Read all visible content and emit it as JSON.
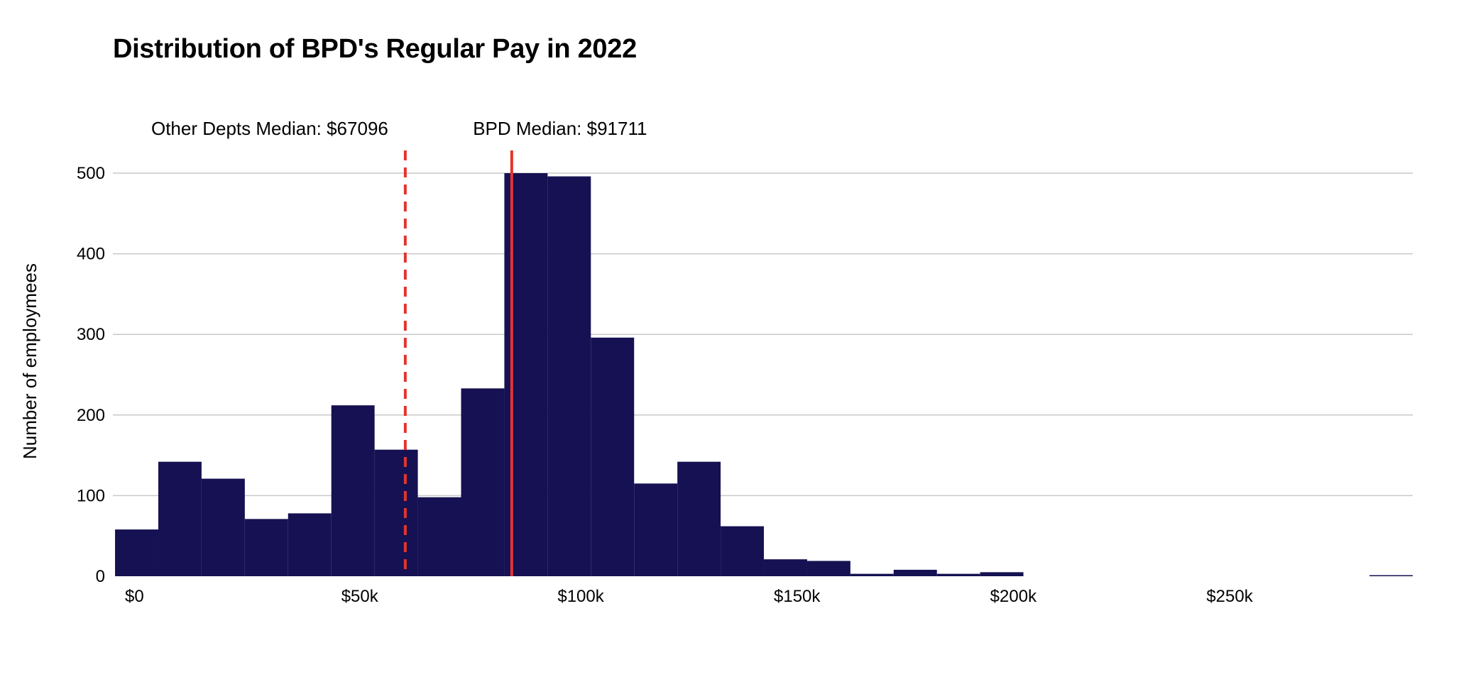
{
  "chart_data": {
    "type": "bar",
    "title": "Distribution of BPD's Regular Pay in 2022",
    "xlabel": "",
    "ylabel": "Number of employmees",
    "bin_width": 10000,
    "bins": [
      {
        "x0": 0,
        "x1": 10000,
        "count": 58
      },
      {
        "x0": 10000,
        "x1": 20000,
        "count": 142
      },
      {
        "x0": 20000,
        "x1": 30000,
        "count": 121
      },
      {
        "x0": 30000,
        "x1": 40000,
        "count": 71
      },
      {
        "x0": 40000,
        "x1": 50000,
        "count": 78
      },
      {
        "x0": 50000,
        "x1": 60000,
        "count": 212
      },
      {
        "x0": 60000,
        "x1": 70000,
        "count": 157
      },
      {
        "x0": 70000,
        "x1": 80000,
        "count": 98
      },
      {
        "x0": 80000,
        "x1": 90000,
        "count": 233
      },
      {
        "x0": 90000,
        "x1": 100000,
        "count": 500
      },
      {
        "x0": 100000,
        "x1": 110000,
        "count": 496
      },
      {
        "x0": 110000,
        "x1": 120000,
        "count": 296
      },
      {
        "x0": 120000,
        "x1": 130000,
        "count": 115
      },
      {
        "x0": 130000,
        "x1": 140000,
        "count": 142
      },
      {
        "x0": 140000,
        "x1": 150000,
        "count": 62
      },
      {
        "x0": 150000,
        "x1": 160000,
        "count": 21
      },
      {
        "x0": 160000,
        "x1": 170000,
        "count": 19
      },
      {
        "x0": 170000,
        "x1": 180000,
        "count": 3
      },
      {
        "x0": 180000,
        "x1": 190000,
        "count": 8
      },
      {
        "x0": 190000,
        "x1": 200000,
        "count": 3
      },
      {
        "x0": 200000,
        "x1": 210000,
        "count": 5
      },
      {
        "x0": 290000,
        "x1": 300000,
        "count": 1
      }
    ],
    "xlim": [
      -500,
      300000
    ],
    "ylim": [
      0,
      500
    ],
    "y_ticks": [
      0,
      100,
      200,
      300,
      400,
      500
    ],
    "x_ticks": [
      {
        "value": 0,
        "label": "$0"
      },
      {
        "value": 50000,
        "label": "$50k"
      },
      {
        "value": 100000,
        "label": "$100k"
      },
      {
        "value": 150000,
        "label": "$150k"
      },
      {
        "value": 200000,
        "label": "$200k"
      },
      {
        "value": 250000,
        "label": "$250k"
      }
    ],
    "grid": true,
    "bar_color": "#151152",
    "grid_color": "#c8c8c8",
    "annotations": [
      {
        "label": "Other Depts Median: $67096",
        "value": 67096,
        "style": "dashed",
        "color": "#e3342f"
      },
      {
        "label": "BPD Median: $91711",
        "value": 91711,
        "style": "solid",
        "color": "#e3342f"
      }
    ]
  }
}
